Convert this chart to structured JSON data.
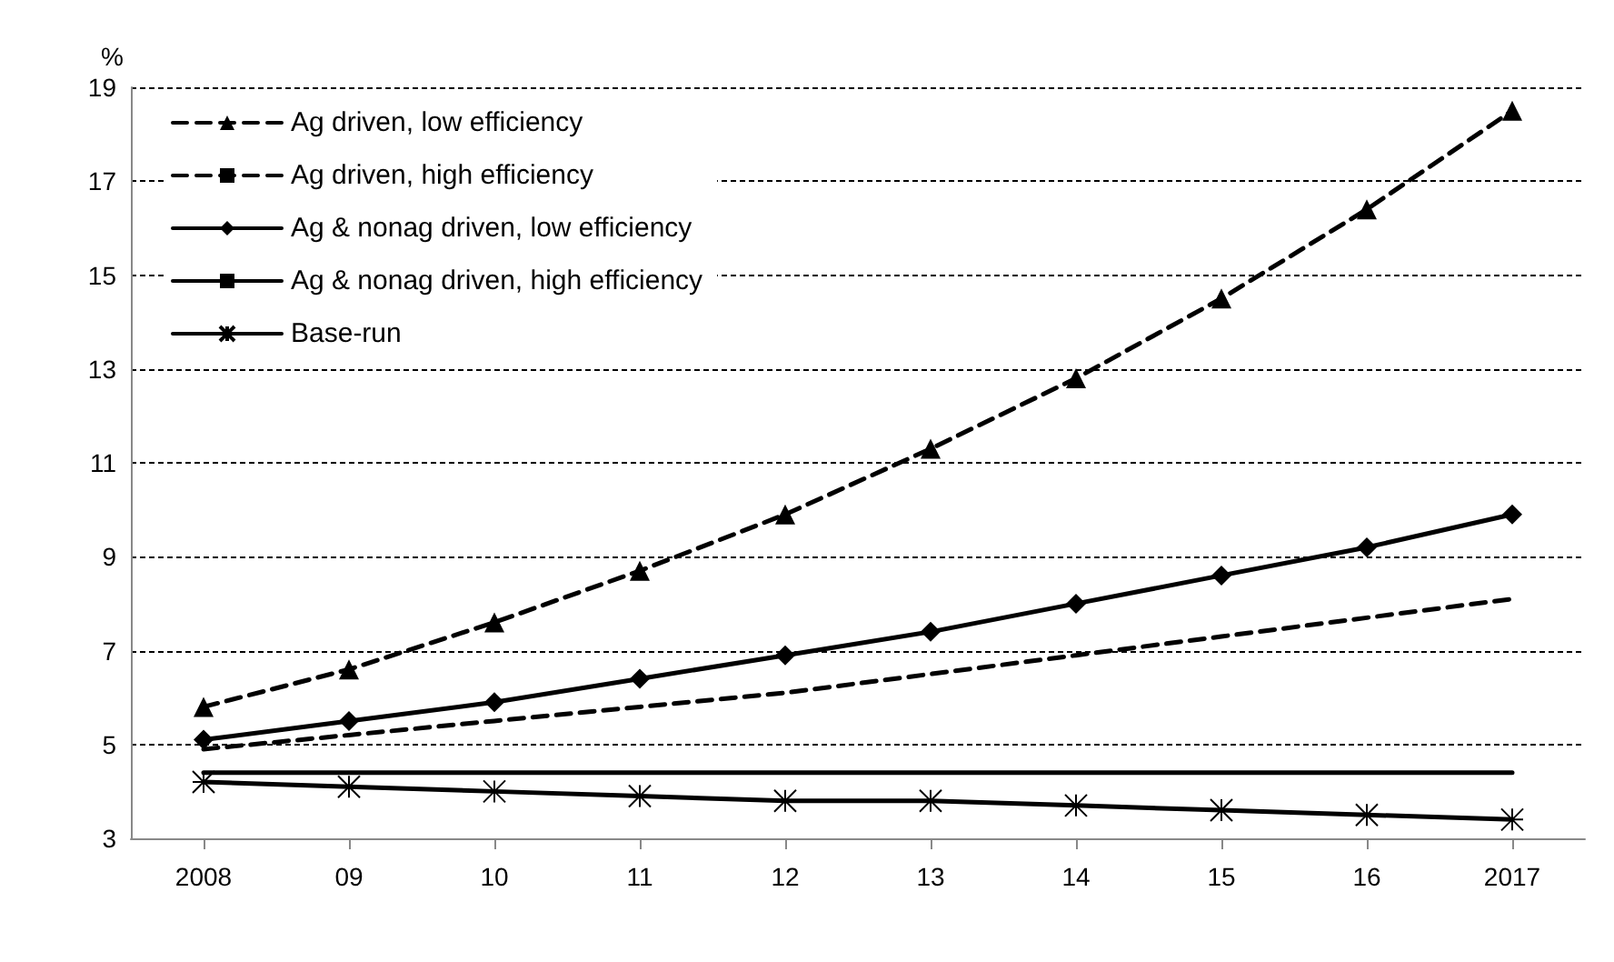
{
  "chart_data": {
    "type": "line",
    "ylabel": "%",
    "categories": [
      "2008",
      "09",
      "10",
      "11",
      "12",
      "13",
      "14",
      "15",
      "16",
      "2017"
    ],
    "ylim": [
      3,
      19
    ],
    "yticks": [
      3,
      5,
      7,
      9,
      11,
      13,
      15,
      17,
      19
    ],
    "grid": "y",
    "legend": "top left",
    "series": [
      {
        "name": "Ag driven, low efficiency",
        "color": "#000000",
        "marker": "triangle",
        "line_style": "dashed",
        "values": [
          5.8,
          6.6,
          7.6,
          8.7,
          9.9,
          11.3,
          12.8,
          14.5,
          16.4,
          18.5
        ]
      },
      {
        "name": "Ag driven, high efficiency",
        "color": "#000000",
        "marker": "none",
        "line_style": "dashed",
        "values": [
          4.9,
          5.2,
          5.5,
          5.8,
          6.1,
          6.5,
          6.9,
          7.3,
          7.7,
          8.1
        ]
      },
      {
        "name": "Ag & nonag driven, low efficiency",
        "color": "#000000",
        "marker": "diamond",
        "line_style": "solid",
        "values": [
          5.1,
          5.5,
          5.9,
          6.4,
          6.9,
          7.4,
          8.0,
          8.6,
          9.2,
          9.9
        ]
      },
      {
        "name": "Ag & nonag driven, high efficiency",
        "color": "#000000",
        "marker": "none",
        "line_style": "solid",
        "values": [
          4.4,
          4.4,
          4.4,
          4.4,
          4.4,
          4.4,
          4.4,
          4.4,
          4.4,
          4.4
        ]
      },
      {
        "name": "Base-run",
        "color": "#000000",
        "marker": "cross",
        "line_style": "solid",
        "values": [
          4.2,
          4.1,
          4.0,
          3.9,
          3.8,
          3.8,
          3.7,
          3.6,
          3.5,
          3.4
        ]
      }
    ]
  }
}
